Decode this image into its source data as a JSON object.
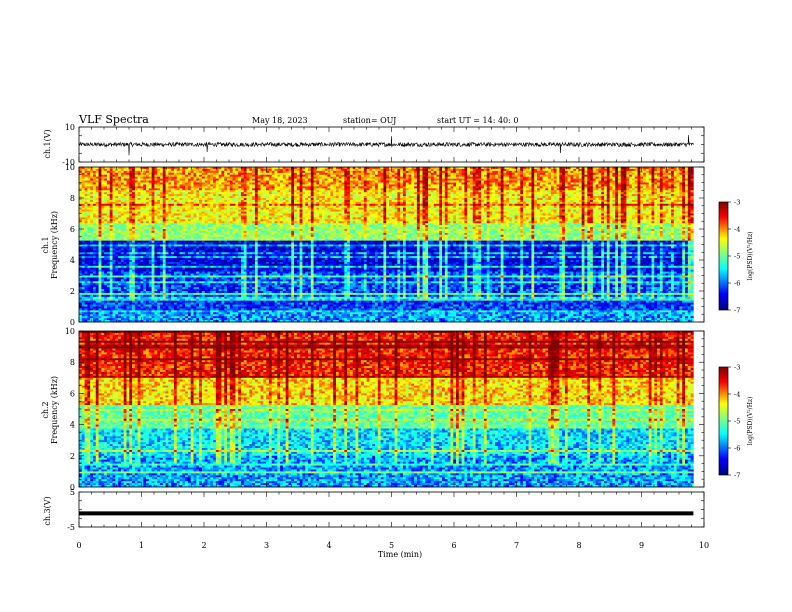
{
  "header": {
    "title": "VLF Spectra",
    "date": "May 18, 2023",
    "station": "station= OUJ",
    "start": "start  UT  =   14: 40: 0"
  },
  "colors": {
    "trace": "#000000",
    "colormap": [
      "#00007f",
      "#0000ff",
      "#00ffff",
      "#7fff7f",
      "#ffff00",
      "#ff0000",
      "#7f0000"
    ]
  },
  "chart_data": [
    {
      "id": "ch1_waveform",
      "type": "line",
      "ylabel": "ch.1(V)",
      "ylim": [
        -10,
        10
      ],
      "ytick_labels": [
        "10",
        "-10"
      ],
      "xlim": [
        0,
        10
      ],
      "series": [
        {
          "baseline_value": 0,
          "noise_amplitude": 1.2,
          "spike_times": [
            0.8,
            2.05,
            5.0,
            7.7,
            9.75
          ]
        }
      ]
    },
    {
      "id": "ch1_spectrogram",
      "type": "heatmap",
      "ylabel_lines": [
        "ch.1",
        "Frequency  (kHz)"
      ],
      "ylim": [
        0,
        10
      ],
      "ytick_labels": [
        "0",
        "2",
        "4",
        "6",
        "8",
        "10"
      ],
      "xlim": [
        0,
        9.83
      ],
      "colorbar": {
        "label": "log(PSD)(V²/Hz)",
        "range": [
          -7,
          -3
        ],
        "tick_labels": [
          "-3",
          "-4",
          "-5",
          "-6",
          "-7"
        ]
      },
      "bands": [
        {
          "from": 0.0,
          "to": 0.6,
          "level": -5.9
        },
        {
          "from": 0.6,
          "to": 3.2,
          "level": -6.2
        },
        {
          "from": 3.2,
          "to": 5.2,
          "level": -6.5
        },
        {
          "from": 5.2,
          "to": 6.4,
          "level": -4.9
        },
        {
          "from": 6.4,
          "to": 8.5,
          "level": -4.4
        },
        {
          "from": 8.5,
          "to": 10.0,
          "level": -4.1
        }
      ]
    },
    {
      "id": "ch2_spectrogram",
      "type": "heatmap",
      "ylabel_lines": [
        "ch.2",
        "Frequency  (kHz)"
      ],
      "ylim": [
        0,
        10
      ],
      "ytick_labels": [
        "0",
        "2",
        "4",
        "6",
        "8",
        "10"
      ],
      "xlim": [
        0,
        9.83
      ],
      "colorbar": {
        "label": "log(PSD)(V²/Hz)",
        "range": [
          -7,
          -3
        ],
        "tick_labels": [
          "-3",
          "-4",
          "-5",
          "-6",
          "-7"
        ]
      },
      "bands": [
        {
          "from": 0.0,
          "to": 2.0,
          "level": -5.9
        },
        {
          "from": 2.0,
          "to": 4.0,
          "level": -5.7
        },
        {
          "from": 4.0,
          "to": 5.2,
          "level": -5.2
        },
        {
          "from": 5.2,
          "to": 7.0,
          "level": -4.3
        },
        {
          "from": 7.0,
          "to": 10.0,
          "level": -3.7
        }
      ]
    },
    {
      "id": "ch3_waveform",
      "type": "line",
      "ylabel": "ch.3(V)",
      "ylim": [
        -5,
        5
      ],
      "ytick_labels": [
        "5",
        "-5"
      ],
      "xlim": [
        0,
        10
      ],
      "series": [
        {
          "constant_value": -1.1
        }
      ]
    }
  ],
  "xaxis": {
    "label": "Time  (min)",
    "range": [
      0,
      10
    ],
    "tick_labels": [
      "0",
      "1",
      "2",
      "3",
      "4",
      "5",
      "6",
      "7",
      "8",
      "9",
      "10"
    ]
  }
}
